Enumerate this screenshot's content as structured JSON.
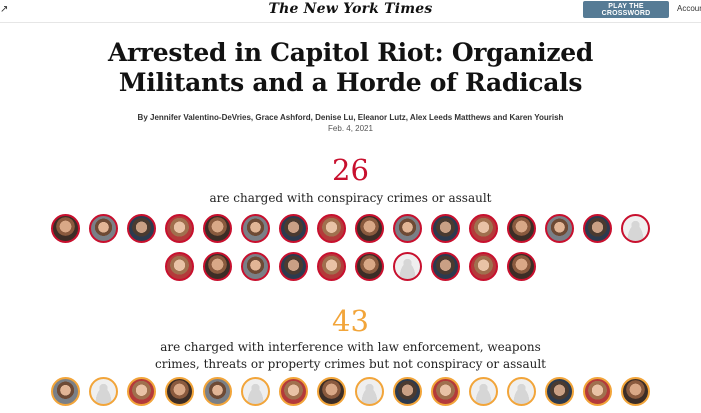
{
  "header": {
    "masthead": "The New York Times",
    "crossword_button": "PLAY THE CROSSWORD",
    "account_link": "Account",
    "share_icon": "share-icon"
  },
  "article": {
    "headline_line1": "Arrested in Capitol Riot: Organized",
    "headline_line2": "Militants and a Horde of Radicals",
    "byline": "By Jennifer Valentino-DeVries, Grace Ashford, Denise Lu, Eleanor Lutz, Alex Leeds Matthews and Karen Yourish",
    "date": "Feb. 4, 2021"
  },
  "sections": [
    {
      "count": "26",
      "description_line1": "are charged with conspiracy crimes or assault",
      "description_line2": "",
      "color": "#c8102e",
      "rows": [
        [
          "photo",
          "photo",
          "photo",
          "photo",
          "photo",
          "photo",
          "photo",
          "photo",
          "photo",
          "photo",
          "photo",
          "photo",
          "photo",
          "photo",
          "photo",
          "placeholder"
        ],
        [
          "photo",
          "photo",
          "photo",
          "photo",
          "photo",
          "photo",
          "placeholder",
          "photo",
          "photo",
          "photo"
        ]
      ]
    },
    {
      "count": "43",
      "description_line1": "are charged with interference with law enforcement, weapons",
      "description_line2": "crimes, threats or property crimes but not conspiracy or assault",
      "color": "#f2a53a",
      "rows": [
        [
          "photo",
          "placeholder",
          "photo",
          "photo",
          "photo",
          "placeholder",
          "photo",
          "photo",
          "placeholder",
          "photo",
          "photo",
          "placeholder",
          "placeholder",
          "photo",
          "photo",
          "photo"
        ]
      ]
    }
  ]
}
